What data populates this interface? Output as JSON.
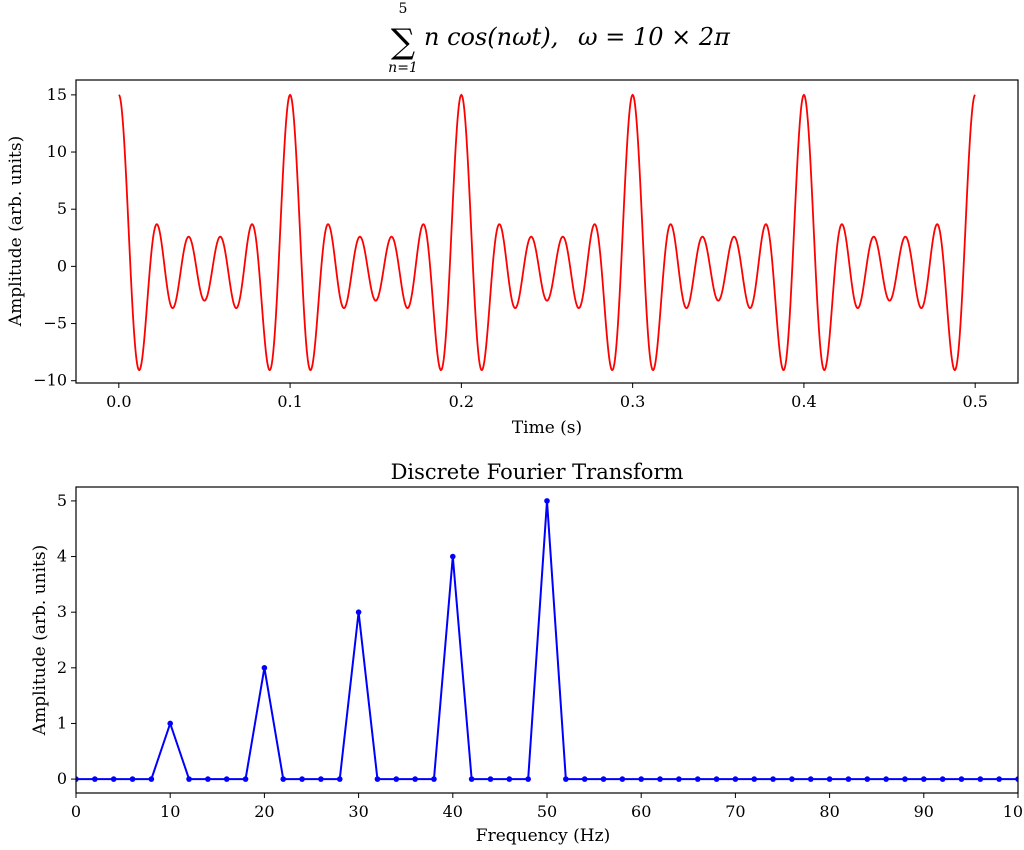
{
  "figure_title": {
    "sum_upper": "5",
    "sum_lower": "n=1",
    "expression": "n cos(nωt),",
    "omega": "ω = 10 × 2π"
  },
  "chart_data": [
    {
      "type": "line",
      "title": "",
      "xlabel": "Time (s)",
      "ylabel": "Amplitude (arb. units)",
      "xlim": [
        -0.025,
        0.525
      ],
      "ylim": [
        -10.2,
        16.3
      ],
      "xticks": [
        0.0,
        0.1,
        0.2,
        0.3,
        0.4,
        0.5
      ],
      "xtick_labels": [
        "0.0",
        "0.1",
        "0.2",
        "0.3",
        "0.4",
        "0.5"
      ],
      "yticks": [
        -10,
        -5,
        0,
        5,
        10,
        15
      ],
      "ytick_labels": [
        "−10",
        "−5",
        "0",
        "5",
        "10",
        "15"
      ],
      "grid": false,
      "color": "#ff0000",
      "series": [
        {
          "function": "sum over n=1..5 of n*cos(n*omega*t)",
          "omega": 62.831853,
          "x_range": [
            0.0,
            0.5
          ],
          "x": [
            0.0,
            0.0115,
            0.022,
            0.0295,
            0.041,
            0.05,
            0.059,
            0.0705,
            0.078,
            0.0885,
            0.1
          ],
          "y": [
            15,
            -9.0,
            3.6,
            -3.6,
            2.6,
            -3.0,
            2.6,
            -3.6,
            3.6,
            -9.0,
            15
          ]
        }
      ]
    },
    {
      "type": "line",
      "title": "Discrete Fourier Transform",
      "xlabel": "Frequency (Hz)",
      "ylabel": "Amplitude (arb. units)",
      "xlim": [
        0,
        100
      ],
      "ylim": [
        -0.25,
        5.25
      ],
      "xticks": [
        0,
        10,
        20,
        30,
        40,
        50,
        60,
        70,
        80,
        90,
        100
      ],
      "xtick_labels": [
        "0",
        "10",
        "20",
        "30",
        "40",
        "50",
        "60",
        "70",
        "80",
        "90",
        "100"
      ],
      "yticks": [
        0,
        1,
        2,
        3,
        4,
        5
      ],
      "ytick_labels": [
        "0",
        "1",
        "2",
        "3",
        "4",
        "5"
      ],
      "grid": false,
      "color": "#0000ff",
      "series": [
        {
          "x": [
            0,
            2,
            4,
            6,
            8,
            10,
            12,
            14,
            16,
            18,
            20,
            22,
            24,
            26,
            28,
            30,
            32,
            34,
            36,
            38,
            40,
            42,
            44,
            46,
            48,
            50,
            52,
            54,
            56,
            58,
            60,
            62,
            64,
            66,
            68,
            70,
            72,
            74,
            76,
            78,
            80,
            82,
            84,
            86,
            88,
            90,
            92,
            94,
            96,
            98,
            100
          ],
          "y": [
            0,
            0,
            0,
            0,
            0,
            1,
            0,
            0,
            0,
            0,
            2,
            0,
            0,
            0,
            0,
            3,
            0,
            0,
            0,
            0,
            4,
            0,
            0,
            0,
            0,
            5,
            0,
            0,
            0,
            0,
            0,
            0,
            0,
            0,
            0,
            0,
            0,
            0,
            0,
            0,
            0,
            0,
            0,
            0,
            0,
            0,
            0,
            0,
            0,
            0,
            0
          ]
        }
      ]
    }
  ]
}
